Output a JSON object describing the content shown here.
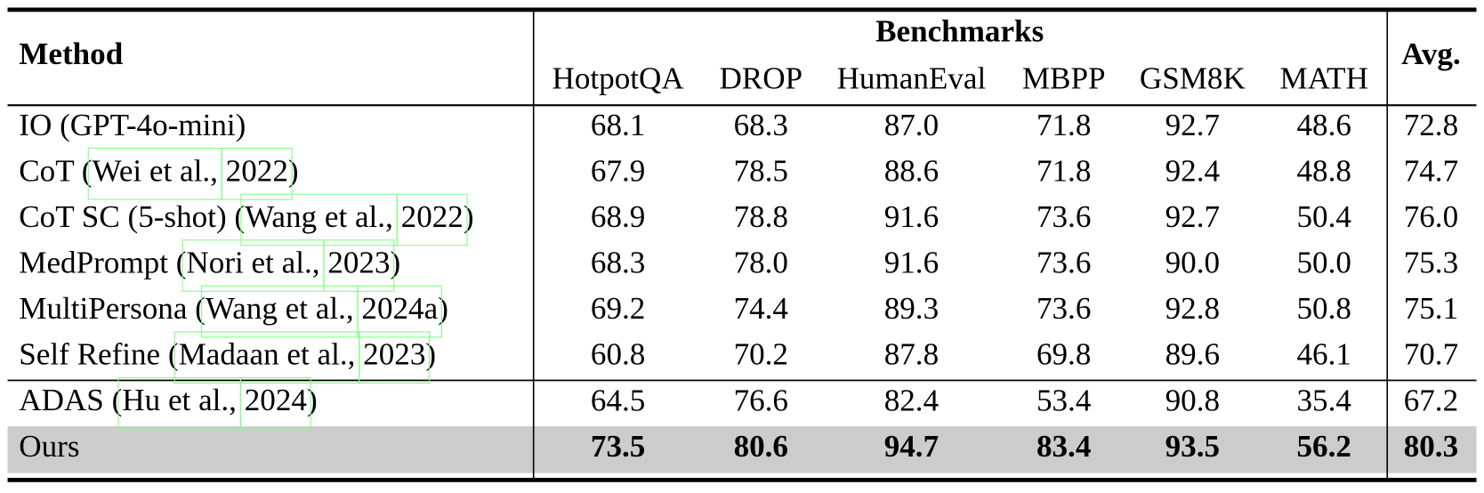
{
  "table": {
    "header": {
      "method": "Method",
      "group": "Benchmarks",
      "columns": [
        "HotpotQA",
        "DROP",
        "HumanEval",
        "MBPP",
        "GSM8K",
        "MATH"
      ],
      "avg": "Avg."
    },
    "sections": [
      {
        "rows": [
          {
            "method": [
              "IO (GPT-4o-mini)"
            ],
            "values": [
              "68.1",
              "68.3",
              "87.0",
              "71.8",
              "92.7",
              "48.6"
            ],
            "avg": "72.8"
          },
          {
            "method": [
              "CoT (",
              "Wei et al.,",
              " ",
              "2022",
              ")"
            ],
            "values": [
              "67.9",
              "78.5",
              "88.6",
              "71.8",
              "92.4",
              "48.8"
            ],
            "avg": "74.7"
          },
          {
            "method": [
              "CoT SC (5-shot) (",
              "Wang et al.,",
              " ",
              "2022",
              ")"
            ],
            "values": [
              "68.9",
              "78.8",
              "91.6",
              "73.6",
              "92.7",
              "50.4"
            ],
            "avg": "76.0"
          },
          {
            "method": [
              "MedPrompt (",
              "Nori et al.,",
              " ",
              "2023",
              ")"
            ],
            "values": [
              "68.3",
              "78.0",
              "91.6",
              "73.6",
              "90.0",
              "50.0"
            ],
            "avg": "75.3"
          },
          {
            "method": [
              "MultiPersona (",
              "Wang et al.,",
              " ",
              "2024a",
              ")"
            ],
            "values": [
              "69.2",
              "74.4",
              "89.3",
              "73.6",
              "92.8",
              "50.8"
            ],
            "avg": "75.1"
          },
          {
            "method": [
              "Self Refine (",
              "Madaan et al.,",
              " ",
              "2023",
              ")"
            ],
            "values": [
              "60.8",
              "70.2",
              "87.8",
              "69.8",
              "89.6",
              "46.1"
            ],
            "avg": "70.7"
          }
        ]
      },
      {
        "rows": [
          {
            "method": [
              "ADAS (",
              "Hu et al.,",
              " ",
              "2024",
              ")"
            ],
            "values": [
              "64.5",
              "76.6",
              "82.4",
              "53.4",
              "90.8",
              "35.4"
            ],
            "avg": "67.2"
          }
        ]
      },
      {
        "highlight": true,
        "rows": [
          {
            "method": [
              "Ours"
            ],
            "values": [
              "73.5",
              "80.6",
              "94.7",
              "83.4",
              "93.5",
              "56.2"
            ],
            "avg": "80.3"
          }
        ]
      }
    ]
  }
}
